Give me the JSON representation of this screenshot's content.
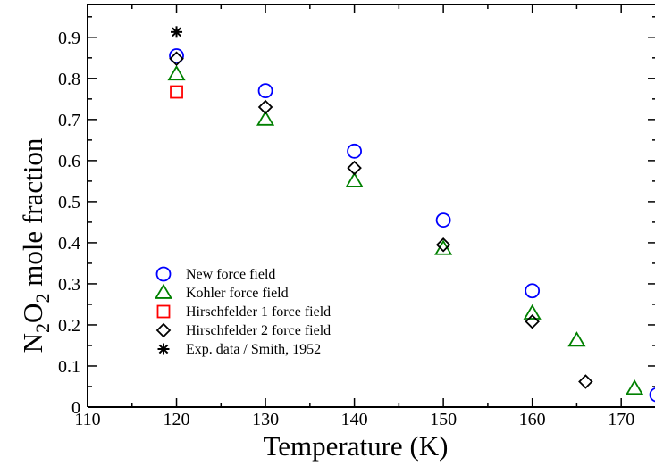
{
  "chart_data": {
    "type": "scatter",
    "title": "",
    "xlabel": "Temperature (K)",
    "ylabel": {
      "base": "N",
      "sub1": "2",
      "mid": "O",
      "sub2": "2",
      "rest": " mole fraction"
    },
    "xlim": [
      110,
      174
    ],
    "ylim": [
      0,
      0.98
    ],
    "xticks": [
      110,
      120,
      130,
      140,
      150,
      160,
      170
    ],
    "xtick_labels": [
      "110",
      "120",
      "130",
      "140",
      "150",
      "160",
      "170"
    ],
    "yticks": [
      0,
      0.1,
      0.2,
      0.3,
      0.4,
      0.5,
      0.6,
      0.7,
      0.8,
      0.9
    ],
    "ytick_labels": [
      "0",
      "0.1",
      "0.2",
      "0.3",
      "0.4",
      "0.5",
      "0.6",
      "0.7",
      "0.8",
      "0.9"
    ],
    "grid": false,
    "legend_position": "bottom-left",
    "series": [
      {
        "name": "New force field",
        "marker": "circle",
        "color": "#0000ff",
        "x": [
          120,
          130,
          140,
          150,
          160,
          174
        ],
        "y": [
          0.855,
          0.77,
          0.623,
          0.455,
          0.283,
          0.03
        ]
      },
      {
        "name": "Kohler force field",
        "marker": "triangle",
        "color": "#008000",
        "x": [
          120,
          130,
          140,
          150,
          160,
          165,
          171.5
        ],
        "y": [
          0.81,
          0.7,
          0.55,
          0.385,
          0.228,
          0.162,
          0.045
        ]
      },
      {
        "name": "Hirschfelder 1 force field",
        "marker": "square",
        "color": "#ff0000",
        "x": [
          120
        ],
        "y": [
          0.767
        ]
      },
      {
        "name": "Hirschfelder 2 force field",
        "marker": "diamond",
        "color": "#000000",
        "x": [
          120,
          130,
          140,
          150,
          160,
          166
        ],
        "y": [
          0.848,
          0.73,
          0.582,
          0.395,
          0.208,
          0.062
        ]
      },
      {
        "name": "Exp. data / Smith, 1952",
        "marker": "star",
        "color": "#000000",
        "x": [
          120
        ],
        "y": [
          0.913
        ]
      }
    ]
  }
}
